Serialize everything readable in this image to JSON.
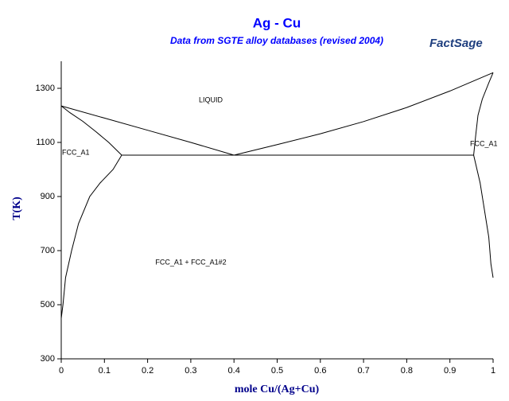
{
  "chart_data": {
    "type": "line",
    "title": "Ag - Cu",
    "subtitle": "Data from SGTE alloy databases (revised 2004)",
    "logo": "FactSage",
    "x_label": "mole Cu/(Ag+Cu)",
    "y_label": "T(K)",
    "xlim": [
      0,
      1
    ],
    "ylim": [
      300,
      1400
    ],
    "xticks": [
      0,
      0.1,
      0.2,
      0.3,
      0.4,
      0.5,
      0.6,
      0.7,
      0.8,
      0.9,
      1
    ],
    "yticks": [
      300,
      500,
      700,
      900,
      1100,
      1300
    ],
    "annotations": [
      "LIQUID",
      "FCC_A1",
      "FCC_A1",
      "FCC_A1 + FCC_A1#2"
    ],
    "series": [
      {
        "color": "#000000",
        "x": [
          0,
          0.1,
          0.2,
          0.3,
          0.4
        ],
        "values": [
          1235,
          1190,
          1145,
          1100,
          1053
        ]
      },
      {
        "color": "#000000",
        "x": [
          0.4,
          0.5,
          0.6,
          0.7,
          0.8,
          0.9,
          1
        ],
        "values": [
          1053,
          1092,
          1132,
          1177,
          1229,
          1290,
          1358
        ]
      },
      {
        "color": "#000000",
        "x": [
          0,
          0.02,
          0.05,
          0.08,
          0.11,
          0.14
        ],
        "values": [
          1235,
          1210,
          1178,
          1140,
          1100,
          1053
        ]
      },
      {
        "color": "#000000",
        "x": [
          0.14,
          0.12,
          0.09,
          0.066,
          0.04,
          0.024,
          0.01,
          0.004,
          0
        ],
        "values": [
          1053,
          1000,
          950,
          900,
          800,
          700,
          600,
          500,
          450
        ]
      },
      {
        "color": "#000000",
        "x": [
          0.14,
          0.955
        ],
        "values": [
          1053,
          1053
        ]
      },
      {
        "color": "#000000",
        "x": [
          1,
          0.99,
          0.975,
          0.965,
          0.96,
          0.955
        ],
        "values": [
          1358,
          1320,
          1260,
          1200,
          1130,
          1053
        ]
      },
      {
        "color": "#000000",
        "x": [
          0.955,
          0.97,
          0.98,
          0.99,
          0.995,
          1
        ],
        "values": [
          1053,
          950,
          850,
          750,
          650,
          600
        ]
      }
    ]
  }
}
